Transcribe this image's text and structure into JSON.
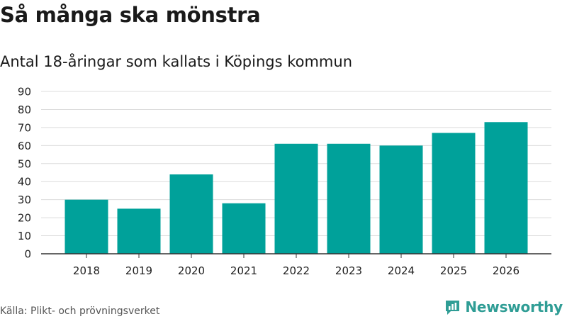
{
  "header": {
    "title": "Så många ska mönstra",
    "subtitle": "Antal 18-åringar som kallats i Köpings kommun"
  },
  "footer": {
    "source": "Källa: Plikt- och prövningsverket",
    "brand": "Newsworthy"
  },
  "colors": {
    "bar": "#00a19a",
    "grid": "#dcdcdc",
    "axis": "#333333",
    "brand": "#2f9d95"
  },
  "chart_data": {
    "type": "bar",
    "title": "Så många ska mönstra",
    "subtitle": "Antal 18-åringar som kallats i Köpings kommun",
    "xlabel": "",
    "ylabel": "",
    "categories": [
      "2018",
      "2019",
      "2020",
      "2021",
      "2022",
      "2023",
      "2024",
      "2025",
      "2026"
    ],
    "values": [
      30,
      25,
      44,
      28,
      61,
      61,
      60,
      67,
      73
    ],
    "ylim": [
      0,
      90
    ],
    "yticks": [
      0,
      10,
      20,
      30,
      40,
      50,
      60,
      70,
      80,
      90
    ],
    "grid": true,
    "legend": "none"
  }
}
